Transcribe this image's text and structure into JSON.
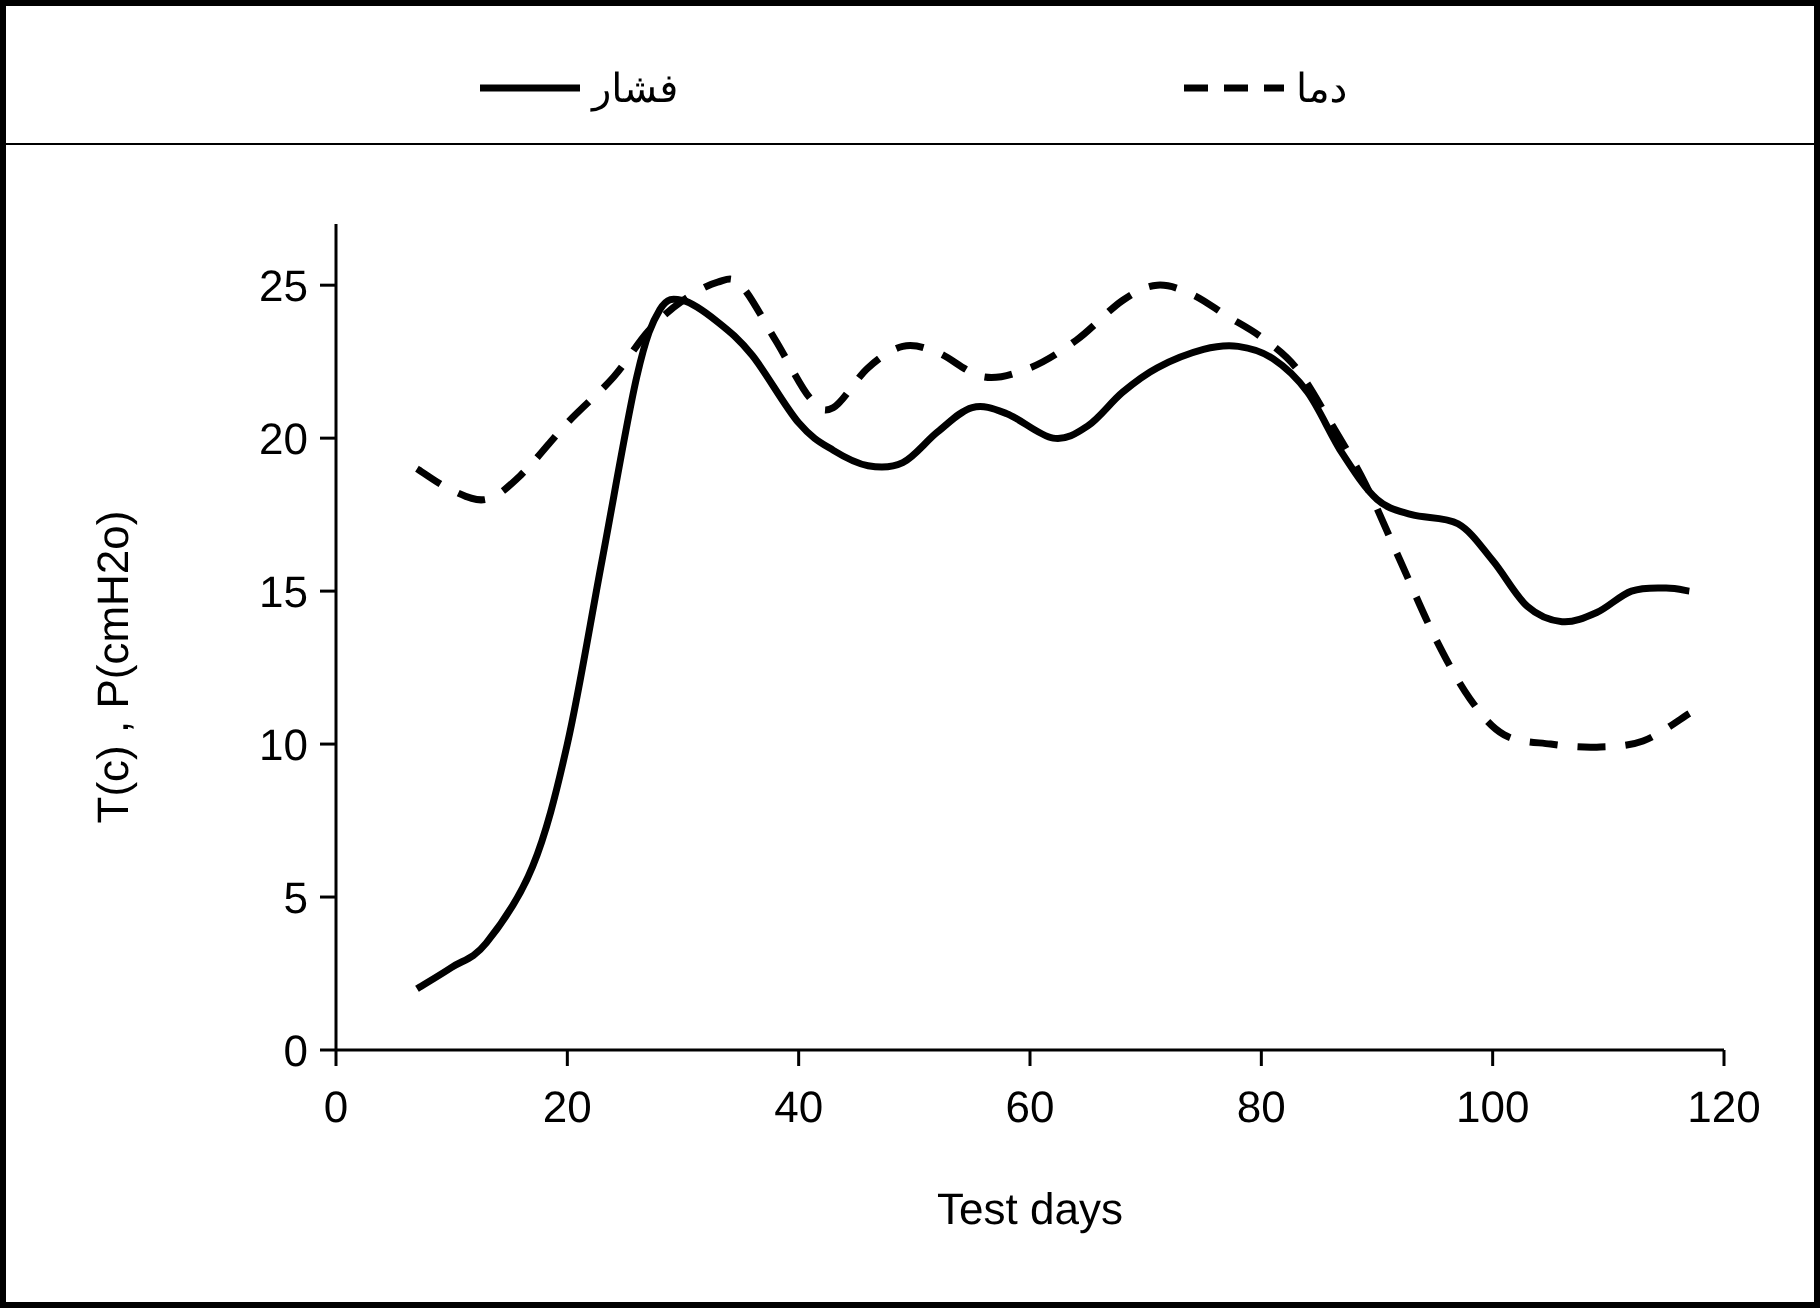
{
  "chart_data": {
    "type": "line",
    "xlabel": "Test days",
    "ylabel": "T(c) , P(cmH2o)",
    "xlim": [
      0,
      120
    ],
    "ylim": [
      0,
      27
    ],
    "xticks": [
      0,
      20,
      40,
      60,
      80,
      100,
      120
    ],
    "yticks": [
      0,
      5,
      10,
      15,
      20,
      25
    ],
    "grid": false,
    "legend": "top",
    "marker": "none",
    "series": [
      {
        "name": "فشار",
        "color": "#000000",
        "line_style": "solid",
        "x": [
          7,
          10,
          13,
          17,
          20,
          23,
          26,
          28,
          30,
          33,
          36,
          40,
          43,
          46,
          49,
          52,
          55,
          58,
          62,
          65,
          68,
          71,
          75,
          78,
          81,
          84,
          87,
          90,
          93,
          97,
          100,
          103,
          106,
          109,
          112,
          115,
          117
        ],
        "values": [
          2,
          2.7,
          3.5,
          6,
          10,
          16,
          22,
          24.2,
          24.5,
          23.8,
          22.7,
          20.5,
          19.6,
          19.1,
          19.2,
          20.2,
          21,
          20.8,
          20,
          20.4,
          21.5,
          22.3,
          22.9,
          23,
          22.6,
          21.5,
          19.5,
          18,
          17.5,
          17.2,
          16,
          14.5,
          14,
          14.3,
          15,
          15.1,
          15
        ]
      },
      {
        "name": "دما",
        "color": "#000000",
        "line_style": "dashed",
        "x": [
          7,
          10,
          13,
          16,
          20,
          24,
          27,
          30,
          33,
          35,
          38,
          41,
          43,
          46,
          49,
          52,
          56,
          60,
          64,
          68,
          71,
          74,
          77,
          80,
          83,
          86,
          89,
          92,
          95,
          98,
          101,
          105,
          109,
          113,
          117
        ],
        "values": [
          19,
          18.3,
          18,
          18.8,
          20.5,
          22,
          23.5,
          24.5,
          25.1,
          25,
          23.2,
          21.3,
          21,
          22.3,
          23,
          22.8,
          22,
          22.3,
          23.2,
          24.5,
          25,
          24.7,
          24,
          23.3,
          22.3,
          20.5,
          18.5,
          16,
          13.5,
          11.5,
          10.3,
          10,
          9.9,
          10.1,
          11
        ]
      }
    ]
  }
}
